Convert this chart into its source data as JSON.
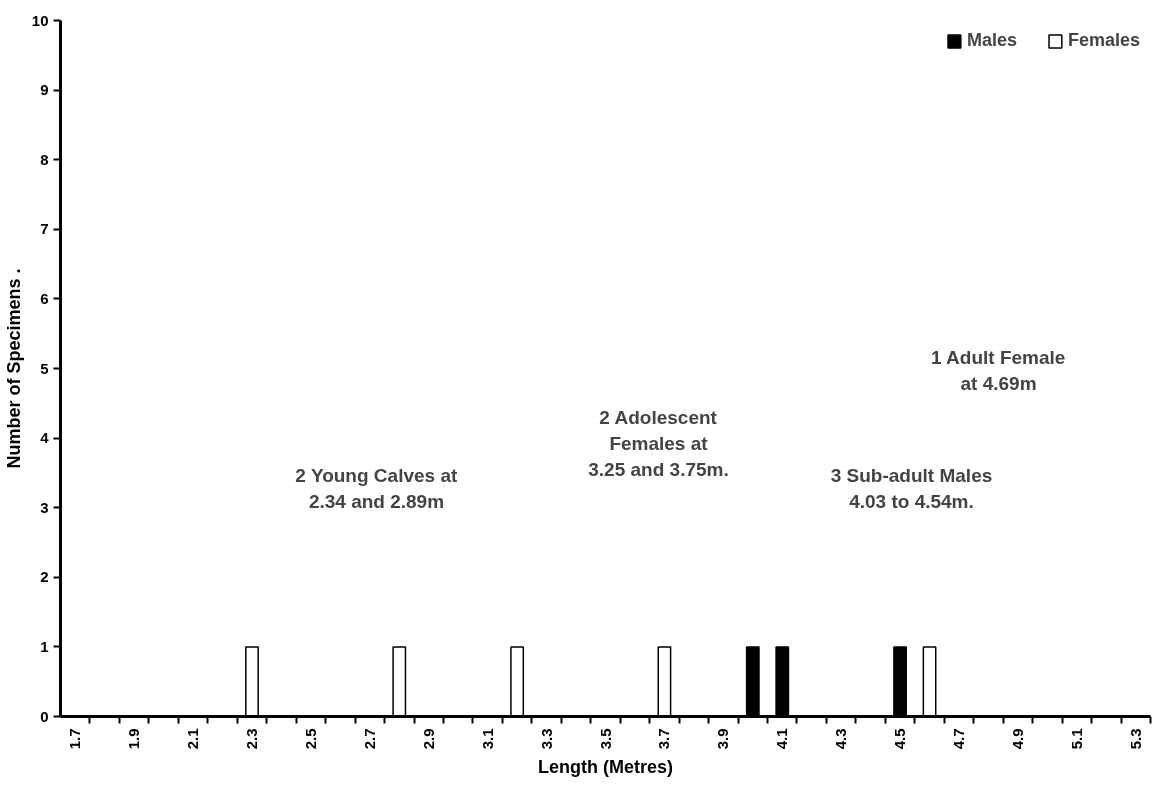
{
  "chart_data": {
    "type": "bar",
    "xlabel": "Length (Metres)",
    "ylabel": "Number of Specimens .",
    "categories": [
      "1.7",
      null,
      "1.9",
      null,
      "2.1",
      null,
      "2.3",
      null,
      "2.5",
      null,
      "2.7",
      null,
      "2.9",
      null,
      "3.1",
      null,
      "3.3",
      null,
      "3.5",
      null,
      "3.7",
      null,
      "3.9",
      null,
      "4.1",
      null,
      "4.3",
      null,
      "4.5",
      null,
      "4.7",
      null,
      "4.9",
      null,
      "5.1",
      null,
      "5.3"
    ],
    "series": [
      {
        "name": "Males",
        "color": "#000000",
        "values": [
          null,
          null,
          null,
          null,
          null,
          null,
          null,
          null,
          null,
          null,
          null,
          null,
          null,
          null,
          null,
          null,
          null,
          null,
          null,
          null,
          null,
          null,
          null,
          1,
          1,
          null,
          null,
          null,
          1,
          null,
          null,
          null,
          null,
          null,
          null,
          null,
          null
        ]
      },
      {
        "name": "Females",
        "color": "#ffffff",
        "values": [
          null,
          null,
          null,
          null,
          null,
          null,
          1,
          null,
          null,
          null,
          null,
          1,
          null,
          null,
          null,
          1,
          null,
          null,
          null,
          null,
          1,
          null,
          null,
          null,
          null,
          null,
          null,
          null,
          null,
          1,
          null,
          null,
          null,
          null,
          null,
          null,
          null
        ]
      }
    ],
    "ylim": [
      0,
      10
    ],
    "yticks": [
      0,
      1,
      2,
      3,
      4,
      5,
      6,
      7,
      8,
      9,
      10
    ],
    "grid": false,
    "legend": "top right",
    "annotations": [
      "2 Young Calves at\n2.34 and 2.89m",
      "2 Adolescent\nFemales at\n3.25 and 3.75m.",
      "3 Sub-adult Males\n4.03 to 4.54m.",
      "1 Adult Female\nat 4.69m"
    ]
  }
}
